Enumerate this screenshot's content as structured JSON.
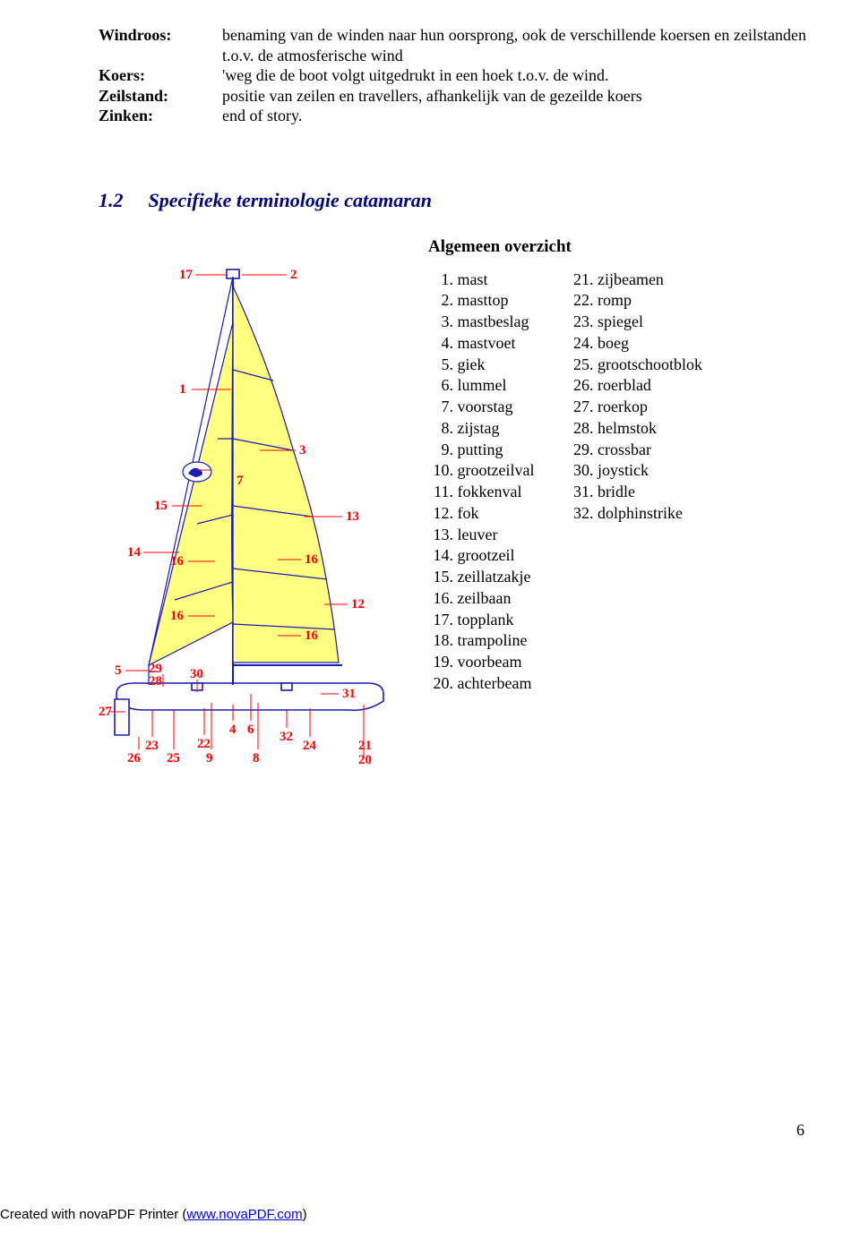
{
  "definitions": [
    {
      "term": "Windroos:",
      "desc": "benaming van de winden naar hun oorsprong, ook de verschillende koersen en zeilstanden t.o.v. de atmosferische wind"
    },
    {
      "term": "Koers:",
      "desc": "'weg die de boot volgt uitgedrukt in een hoek t.o.v. de wind."
    },
    {
      "term": "Zeilstand:",
      "desc": "positie van zeilen en travellers, afhankelijk van de gezeilde koers"
    },
    {
      "term": "Zinken:",
      "desc": "end of story."
    }
  ],
  "section": {
    "number": "1.2",
    "title": "Specifieke terminologie catamaran"
  },
  "overview_title": "Algemeen overzicht",
  "list_a": [
    "mast",
    "masttop",
    "mastbeslag",
    "mastvoet",
    "giek",
    "lummel",
    "voorstag",
    "zijstag",
    "putting",
    "grootzeilval",
    "fokkenval",
    "fok",
    "leuver",
    "grootzeil",
    "zeillatzakje",
    "zeilbaan",
    "topplank",
    "trampoline",
    "voorbeam",
    "achterbeam"
  ],
  "list_b": [
    "zijbeamen",
    "romp",
    "spiegel",
    "boeg",
    "grootschootblok",
    "roerblad",
    "roerkop",
    "helmstok",
    "crossbar",
    "joystick",
    "bridle",
    "dolphinstrike"
  ],
  "page_number": "6",
  "footer_prefix": "Created with novaPDF Printer (",
  "footer_link_text": "www.novaPDF.com",
  "footer_suffix": ")",
  "diagram_labels": {
    "l1": "1",
    "l2": "2",
    "l3": "3",
    "l4": "4",
    "l5": "5",
    "l6": "6",
    "l7": "7",
    "l8": "8",
    "l9": "9",
    "l12": "12",
    "l13": "13",
    "l14": "14",
    "l15": "15",
    "l16": "16",
    "l16b": "16",
    "l16c": "16",
    "l16d": "16",
    "l17": "17",
    "l20": "20",
    "l21": "21",
    "l22": "22",
    "l23": "23",
    "l24": "24",
    "l25": "25",
    "l26": "26",
    "l27": "27",
    "l28": "28",
    "l29": "29",
    "l30": "30",
    "l31": "31",
    "l32": "32"
  },
  "colors": {
    "accent": "#000080",
    "label_red": "#ff0000",
    "line_blue": "#1a1ab8",
    "sail_yellow": "#ffff80",
    "link": "#0000ee"
  }
}
